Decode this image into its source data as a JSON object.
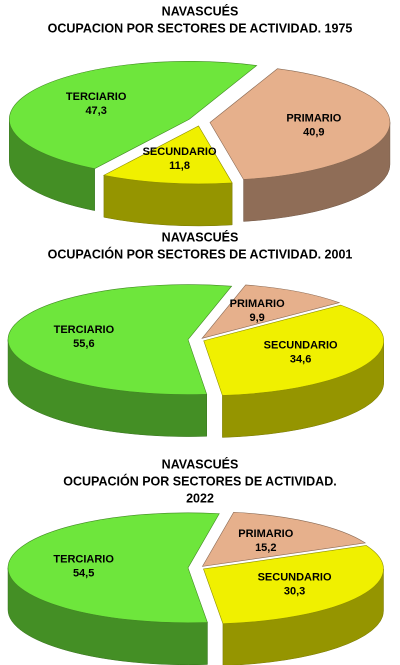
{
  "chart_data": [
    {
      "type": "pie",
      "title": "NAVASCUÉS",
      "subtitle": [
        "OCUPACION POR SECTORES DE ACTIVIDAD. 1975"
      ],
      "categories": [
        "PRIMARIO",
        "SECUNDARIO",
        "TERCIARIO"
      ],
      "values": [
        40.9,
        11.8,
        47.3
      ],
      "value_labels": [
        "40,9",
        "11,8",
        "47,3"
      ],
      "colors": [
        "#e6b08c",
        "#f0f000",
        "#6ee63c"
      ]
    },
    {
      "type": "pie",
      "title": "NAVASCUÉS",
      "subtitle": [
        "OCUPACIÓN POR SECTORES DE ACTIVIDAD. 2001"
      ],
      "categories": [
        "PRIMARIO",
        "SECUNDARIO",
        "TERCIARIO"
      ],
      "values": [
        9.9,
        34.6,
        55.6
      ],
      "value_labels": [
        "9,9",
        "34,6",
        "55,6"
      ],
      "colors": [
        "#e6b08c",
        "#f0f000",
        "#6ee63c"
      ]
    },
    {
      "type": "pie",
      "title": "NAVASCUÉS",
      "subtitle": [
        "OCUPACIÓN POR SECTORES DE ACTIVIDAD.",
        "2022"
      ],
      "categories": [
        "PRIMARIO",
        "SECUNDARIO",
        "TERCIARIO"
      ],
      "values": [
        15.2,
        30.3,
        54.5
      ],
      "value_labels": [
        "15,2",
        "30,3",
        "54,5"
      ],
      "colors": [
        "#e6b08c",
        "#f0f000",
        "#6ee63c"
      ]
    }
  ]
}
